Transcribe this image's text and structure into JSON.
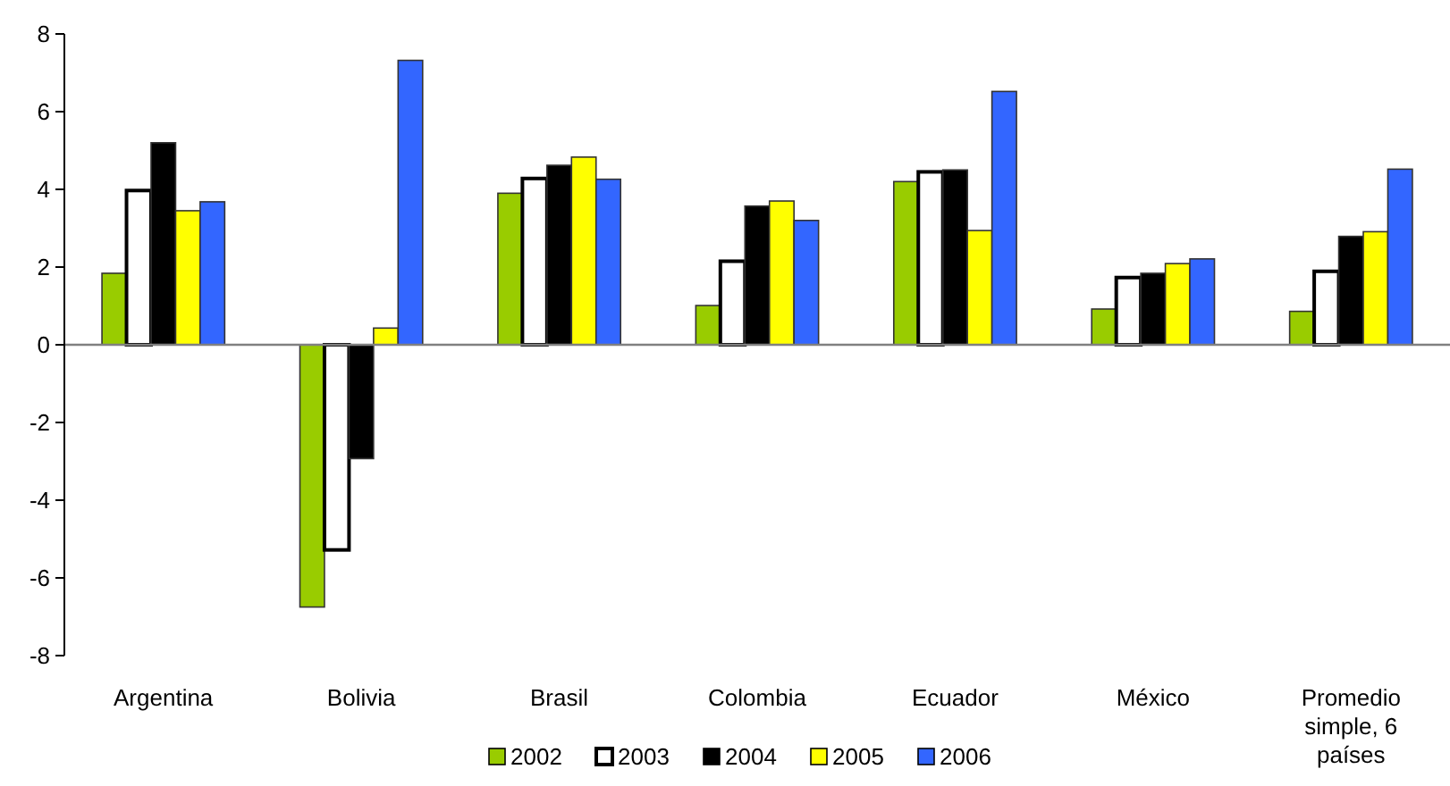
{
  "chart_data": {
    "type": "bar",
    "categories": [
      "Argentina",
      "Bolivia",
      "Brasil",
      "Colombia",
      "Ecuador",
      "México",
      "Promedio simple, 6 países"
    ],
    "series": [
      {
        "name": "2002",
        "color": "#99cc00",
        "values": [
          1.84,
          -6.75,
          3.9,
          1.01,
          4.2,
          0.92,
          0.86
        ]
      },
      {
        "name": "2003",
        "color": "#ffffff",
        "values": [
          3.97,
          -5.28,
          4.28,
          2.15,
          4.45,
          1.73,
          1.89
        ]
      },
      {
        "name": "2004",
        "color": "#000000",
        "values": [
          5.2,
          -2.93,
          4.62,
          3.57,
          4.5,
          1.84,
          2.79
        ]
      },
      {
        "name": "2005",
        "color": "#ffff00",
        "values": [
          3.45,
          0.43,
          4.83,
          3.7,
          2.94,
          2.09,
          2.91
        ]
      },
      {
        "name": "2006",
        "color": "#3366ff",
        "values": [
          3.68,
          7.32,
          4.26,
          3.2,
          6.52,
          2.21,
          4.52
        ]
      }
    ],
    "ylim": [
      -8,
      8
    ],
    "yticks": [
      -8,
      -6,
      -4,
      -2,
      0,
      2,
      4,
      6,
      8
    ],
    "legend": "bottom"
  }
}
